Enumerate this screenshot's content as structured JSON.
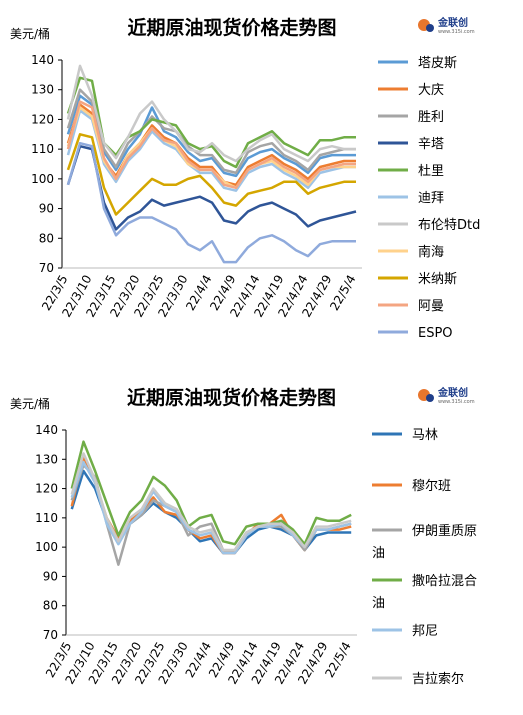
{
  "chart_data": [
    {
      "type": "line",
      "title": "近期原油现货价格走势图",
      "y_label": "美元/桶",
      "logo": "金联创",
      "logo_subtitle": "www.315i.com",
      "categories": [
        "22/3/5",
        null,
        "22/3/10",
        null,
        "22/3/15",
        null,
        "22/3/20",
        null,
        "22/3/25",
        null,
        "22/3/30",
        null,
        "22/4/4",
        null,
        "22/4/9",
        null,
        "22/4/14",
        null,
        "22/4/19",
        null,
        "22/4/24",
        null,
        "22/4/29",
        null,
        "22/5/4"
      ],
      "ylim": [
        70,
        140
      ],
      "yticks": [
        70,
        80,
        90,
        100,
        110,
        120,
        130,
        140
      ],
      "series": [
        {
          "name": "塔皮斯",
          "color": "#5b9bd5",
          "values": [
            115,
            128,
            125,
            109,
            103,
            110,
            115,
            124,
            116,
            114,
            109,
            106,
            107,
            102,
            101,
            107,
            109,
            110,
            107,
            105,
            102,
            107,
            108,
            108,
            108
          ]
        },
        {
          "name": "大庆",
          "color": "#ed7d31",
          "values": [
            112,
            125,
            122,
            106,
            101,
            108,
            112,
            118,
            114,
            112,
            107,
            104,
            104,
            99,
            98,
            104,
            106,
            108,
            105,
            103,
            100,
            104,
            105,
            106,
            106
          ]
        },
        {
          "name": "胜利",
          "color": "#a5a5a5",
          "values": [
            117,
            130,
            126,
            110,
            104,
            112,
            116,
            121,
            117,
            116,
            111,
            108,
            108,
            103,
            102,
            109,
            111,
            112,
            108,
            106,
            103,
            108,
            109,
            110,
            110
          ]
        },
        {
          "name": "辛塔",
          "color": "#2f5597",
          "values": [
            98,
            111,
            110,
            92,
            83,
            87,
            89,
            93,
            91,
            92,
            93,
            94,
            92,
            86,
            85,
            89,
            91,
            92,
            90,
            88,
            84,
            86,
            87,
            88,
            89
          ]
        },
        {
          "name": "杜里",
          "color": "#70ad47",
          "values": [
            122,
            134,
            133,
            112,
            108,
            114,
            116,
            120,
            119,
            118,
            112,
            110,
            111,
            106,
            104,
            112,
            114,
            116,
            112,
            110,
            108,
            113,
            113,
            114,
            114
          ]
        },
        {
          "name": "迪拜",
          "color": "#9dc3e6",
          "values": [
            108,
            123,
            120,
            105,
            99,
            106,
            110,
            116,
            112,
            110,
            105,
            102,
            102,
            97,
            96,
            102,
            104,
            105,
            102,
            100,
            97,
            102,
            103,
            104,
            104
          ]
        },
        {
          "name": "布伦特Dtd",
          "color": "#c9c9c9",
          "values": [
            120,
            138,
            128,
            112,
            107,
            114,
            122,
            126,
            120,
            116,
            110,
            109,
            112,
            108,
            106,
            110,
            113,
            115,
            110,
            108,
            106,
            110,
            111,
            110,
            110
          ]
        },
        {
          "name": "南海",
          "color": "#ffd28c",
          "values": [
            111,
            124,
            121,
            106,
            100,
            108,
            112,
            117,
            113,
            111,
            105,
            103,
            103,
            99,
            97,
            103,
            105,
            106,
            103,
            101,
            98,
            103,
            104,
            104,
            104
          ]
        },
        {
          "name": "米纳斯",
          "color": "#d4a600",
          "values": [
            103,
            115,
            114,
            97,
            88,
            92,
            96,
            100,
            98,
            98,
            100,
            101,
            97,
            92,
            91,
            95,
            96,
            97,
            99,
            99,
            95,
            97,
            98,
            99,
            99
          ]
        },
        {
          "name": "阿曼",
          "color": "#f4a582",
          "values": [
            110,
            126,
            124,
            107,
            100,
            107,
            111,
            117,
            113,
            112,
            106,
            103,
            103,
            98,
            97,
            103,
            105,
            107,
            104,
            102,
            99,
            103,
            104,
            105,
            105
          ]
        },
        {
          "name": "ESPO",
          "color": "#8faadc",
          "values": [
            98,
            112,
            111,
            90,
            81,
            85,
            87,
            87,
            85,
            83,
            78,
            76,
            79,
            72,
            72,
            77,
            80,
            81,
            79,
            76,
            74,
            78,
            79,
            79,
            79
          ]
        }
      ]
    },
    {
      "type": "line",
      "title": "近期原油现货价格走势图",
      "y_label": "美元/桶",
      "logo": "金联创",
      "logo_subtitle": "www.315i.com",
      "categories": [
        "22/3/5",
        null,
        "22/3/10",
        null,
        "22/3/15",
        null,
        "22/3/20",
        null,
        "22/3/25",
        null,
        "22/3/30",
        null,
        "22/4/4",
        null,
        "22/4/9",
        null,
        "22/4/14",
        null,
        "22/4/19",
        null,
        "22/4/24",
        null,
        "22/4/29",
        null,
        "22/5/4"
      ],
      "ylim": [
        70,
        140
      ],
      "yticks": [
        70,
        80,
        90,
        100,
        110,
        120,
        130,
        140
      ],
      "series": [
        {
          "name": "马林",
          "color": "#2e75b6",
          "values": [
            113,
            126,
            120,
            109,
            102,
            108,
            111,
            115,
            112,
            110,
            106,
            102,
            103,
            98,
            98,
            103,
            106,
            107,
            106,
            104,
            99,
            104,
            105,
            105,
            105
          ]
        },
        {
          "name": "穆尔班",
          "color": "#ed7d31",
          "values": [
            114,
            131,
            122,
            110,
            103,
            109,
            112,
            117,
            112,
            111,
            106,
            103,
            104,
            98,
            98,
            104,
            108,
            108,
            111,
            104,
            99,
            106,
            106,
            106,
            107
          ]
        },
        {
          "name": "伊朗重质原油",
          "color": "#a5a5a5",
          "values": [
            116,
            128,
            124,
            108,
            94,
            108,
            111,
            116,
            114,
            112,
            104,
            107,
            108,
            99,
            99,
            105,
            107,
            107,
            107,
            104,
            99,
            106,
            106,
            107,
            108
          ]
        },
        {
          "name": "撒哈拉混合油",
          "color": "#70ad47",
          "values": [
            120,
            136,
            126,
            115,
            104,
            112,
            116,
            124,
            121,
            116,
            107,
            110,
            111,
            102,
            101,
            107,
            108,
            108,
            109,
            106,
            101,
            110,
            109,
            109,
            111
          ]
        },
        {
          "name": "邦尼",
          "color": "#9dc3e6",
          "values": [
            117,
            129,
            122,
            108,
            101,
            108,
            112,
            119,
            114,
            112,
            106,
            104,
            105,
            98,
            98,
            104,
            107,
            107,
            108,
            104,
            100,
            106,
            106,
            107,
            108
          ]
        },
        {
          "name": "吉拉索尔",
          "color": "#c9c9c9",
          "values": [
            118,
            132,
            123,
            110,
            102,
            110,
            113,
            120,
            115,
            113,
            107,
            105,
            106,
            99,
            99,
            105,
            107,
            108,
            108,
            105,
            100,
            107,
            107,
            108,
            109
          ]
        }
      ]
    }
  ]
}
